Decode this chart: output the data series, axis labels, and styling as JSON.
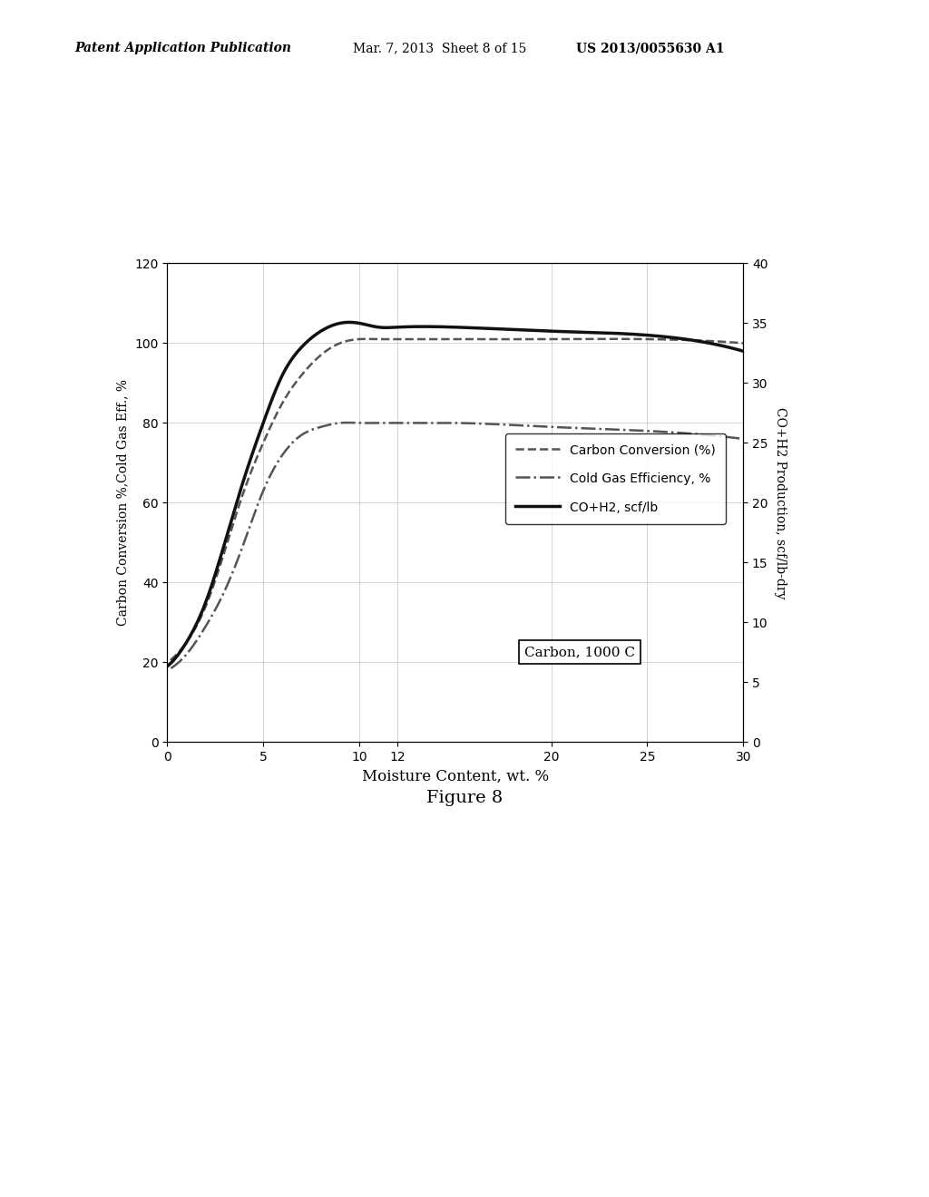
{
  "header_left": "Patent Application Publication",
  "header_mid": "Mar. 7, 2013  Sheet 8 of 15",
  "header_right": "US 2013/0055630 A1",
  "figure_caption": "Figure 8",
  "xlabel": "Moisture Content, wt. %",
  "ylabel_left": "Carbon Conversion %,Cold Gas Eff., %",
  "ylabel_right": "CO+H2 Production, scf/lb-dry",
  "xlim": [
    0,
    30
  ],
  "ylim_left": [
    0,
    120
  ],
  "ylim_right": [
    0,
    40
  ],
  "xticks": [
    0,
    5,
    10,
    12,
    20,
    25,
    30
  ],
  "yticks_left": [
    0,
    20,
    40,
    60,
    80,
    100,
    120
  ],
  "yticks_right": [
    0,
    5,
    10,
    15,
    20,
    25,
    30,
    35,
    40
  ],
  "annotation": "Carbon, 1000 C",
  "legend": [
    {
      "label": "Carbon Conversion (%)",
      "linestyle": "--",
      "color": "#555555",
      "linewidth": 1.8
    },
    {
      "label": "Cold Gas Efficiency, %",
      "linestyle": "-.",
      "color": "#555555",
      "linewidth": 1.8
    },
    {
      "label": "CO+H2, scf/lb",
      "linestyle": "-",
      "color": "#111111",
      "linewidth": 2.5
    }
  ],
  "carbon_conversion_x": [
    -1,
    0,
    1,
    2,
    3,
    4,
    5,
    6,
    7,
    8,
    9,
    10,
    11,
    12,
    15,
    20,
    25,
    30
  ],
  "carbon_conversion_y": [
    19,
    20,
    25,
    34,
    48,
    63,
    75,
    85,
    92,
    97,
    100,
    101,
    101,
    101,
    101,
    101,
    101,
    100
  ],
  "cold_gas_x": [
    -1,
    0,
    1,
    2,
    3,
    4,
    5,
    6,
    7,
    8,
    9,
    10,
    11,
    12,
    15,
    20,
    25,
    30
  ],
  "cold_gas_y": [
    17,
    18,
    22,
    29,
    38,
    50,
    63,
    72,
    77,
    79,
    80,
    80,
    80,
    80,
    80,
    79,
    78,
    76
  ],
  "coh2_x": [
    -1,
    0,
    1,
    2,
    3,
    4,
    5,
    6,
    7,
    8,
    9,
    10,
    11,
    12,
    15,
    20,
    25,
    30
  ],
  "coh2_y": [
    18,
    19,
    25,
    35,
    50,
    66,
    80,
    92,
    99,
    103,
    105,
    105,
    104,
    104,
    104,
    103,
    102,
    98
  ],
  "background_color": "#ffffff",
  "grid_color": "#aaaaaa",
  "grid_alpha": 0.5
}
